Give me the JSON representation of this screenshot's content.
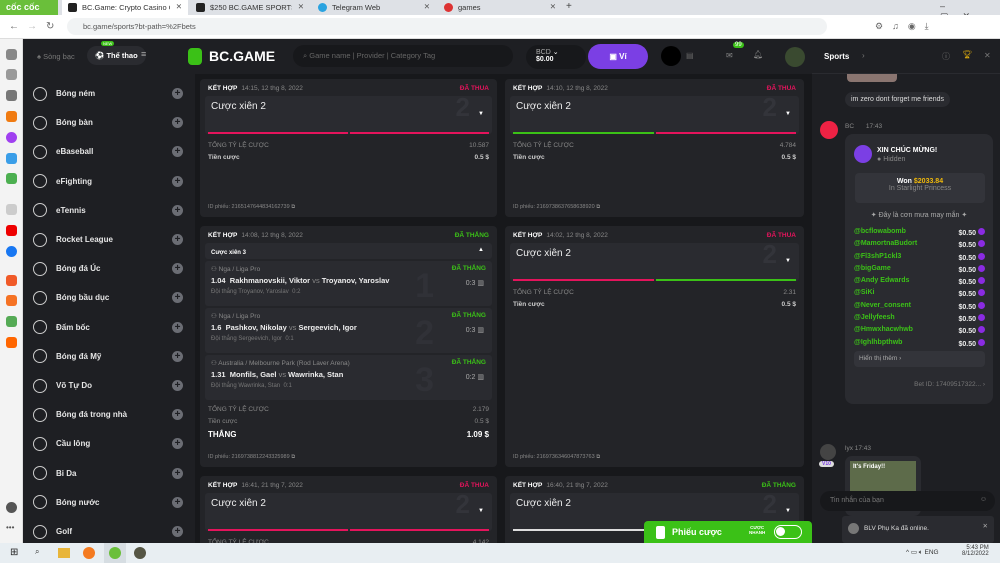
{
  "browser": {
    "brand": "cốc cốc",
    "tabs": [
      {
        "title": "BC.Game: Crypto Casino Gan",
        "active": true
      },
      {
        "title": "$250 BC.GAME SPORTS PARL",
        "active": false
      },
      {
        "title": "Telegram Web",
        "active": false
      },
      {
        "title": "games",
        "active": false
      }
    ],
    "url": "bc.game/sports?bt-path=%2Fbets"
  },
  "topnav": {
    "casino": "Sòng bạc",
    "sports": "Thể thao",
    "new_badge": "NEW",
    "logo": "BC.GAME",
    "search_placeholder": "Game name | Provider | Category Tag",
    "currency": "BCD",
    "balance": "$0.00",
    "wallet": "Ví",
    "mail_count": "99"
  },
  "sidebar": {
    "items": [
      "Bóng ném",
      "Bóng bàn",
      "eBaseball",
      "eFighting",
      "eTennis",
      "Rocket League",
      "Bóng đá Úc",
      "Bóng bầu dục",
      "Đấm bốc",
      "Bóng đá Mỹ",
      "Võ Tự Do",
      "Bóng đá trong nhà",
      "Cầu lông",
      "Bi Da",
      "Bóng nước",
      "Golf"
    ]
  },
  "labels": {
    "combo": "KẾT HỢP",
    "total_odds": "TỔNG TỶ LỆ CƯỢC",
    "stake": "Tiền cược",
    "ticket_id": "ID phiếu:",
    "win": "THẮNG",
    "lost": "ĐÃ THUA",
    "won": "ĐÃ THẮNG",
    "vs": "vs",
    "winner": "Đội thắng"
  },
  "bets": [
    {
      "time": "14:15, 12 thg 8, 2022",
      "status": "ĐÃ THUA",
      "title": "Cược xiên 2",
      "count": "2",
      "odds": "10.587",
      "stake": "0.5 $",
      "id": "2165147644834162739",
      "bars": [
        "#e4145c",
        "#e4145c"
      ]
    },
    {
      "time": "14:10, 12 thg 8, 2022",
      "status": "ĐÃ THUA",
      "title": "Cược xiên 2",
      "count": "2",
      "odds": "4.784",
      "stake": "0.5 $",
      "id": "2169738637658638920",
      "bars": [
        "#3bc117",
        "#e4145c"
      ]
    },
    {
      "time": "14:08, 12 thg 8, 2022",
      "status": "ĐÃ THẮNG",
      "title": "Cược xiên 3",
      "odds": "2.179",
      "stake": "0.5 $",
      "payout": "1.09 $",
      "id": "2169738812243325989",
      "legs": [
        {
          "league": "Nga / Liga Pro",
          "status": "ĐÃ THẮNG",
          "odds": "1.04",
          "home": "Rakhmanovskii, Viktor",
          "away": "Troyanov, Yaroslav",
          "score": "0:3",
          "pick": "Đội thắng Troyanov, Yaroslav",
          "pick_score": "0:2",
          "num": "1"
        },
        {
          "league": "Nga / Liga Pro",
          "status": "ĐÃ THẮNG",
          "odds": "1.6",
          "home": "Pashkov, Nikolay",
          "away": "Sergeevich, Igor",
          "score": "0:3",
          "pick": "Đội thắng Sergeevich, Igor",
          "pick_score": "0:1",
          "num": "2"
        },
        {
          "league": "Australia / Melbourne Park (Rod Laver Arena)",
          "status": "ĐÃ THẮNG",
          "odds": "1.31",
          "home": "Monfils, Gael",
          "away": "Wawrinka, Stan",
          "score": "0:2",
          "pick": "Đội thắng Wawrinka, Stan",
          "pick_score": "0:1",
          "num": "3"
        }
      ]
    },
    {
      "time": "14:02, 12 thg 8, 2022",
      "status": "ĐÃ THUA",
      "title": "Cược xiên 2",
      "count": "2",
      "odds": "2.31",
      "stake": "0.5 $",
      "id": "2169736346047873763",
      "bars": [
        "#e4145c",
        "#3bc117"
      ]
    },
    {
      "time": "16:41, 21 thg 7, 2022",
      "status": "ĐÃ THUA",
      "title": "Cược xiên 2",
      "count": "2",
      "odds": "4.142",
      "bars": [
        "#e4145c",
        "#e4145c"
      ]
    },
    {
      "time": "16:40, 21 thg 7, 2022",
      "status": "ĐÃ THẮNG",
      "title": "Cược xiên 2",
      "count": "2",
      "bars": [
        "#dddddd",
        "#dddddd"
      ]
    }
  ],
  "betslip": {
    "label": "Phiếu cược",
    "quick1": "CƯỢC",
    "quick2": "NHANH"
  },
  "chat": {
    "tab": "Sports",
    "msg1": "im zero dont forget me friends",
    "bc_user": "BC",
    "bc_time": "17:43",
    "congrats": "XIN CHÚC MỪNG!",
    "hidden": "Hidden",
    "won_label": "Won",
    "won_amount": "$2033.84",
    "game": "In Starlight Princess",
    "rain": "Đây là cơn mưa may mắn",
    "rain_users": [
      {
        "name": "@bcflowabomb",
        "amount": "$0.50"
      },
      {
        "name": "@MamortnaBudort",
        "amount": "$0.50"
      },
      {
        "name": "@Fl3shP1ckl3",
        "amount": "$0.50"
      },
      {
        "name": "@bigGame",
        "amount": "$0.50"
      },
      {
        "name": "@Andy Edwards",
        "amount": "$0.50"
      },
      {
        "name": "@SiKi",
        "amount": "$0.50"
      },
      {
        "name": "@Never_consent",
        "amount": "$0.50"
      },
      {
        "name": "@Jellyfeesh",
        "amount": "$0.50"
      },
      {
        "name": "@Hmwxhacwhwb",
        "amount": "$0.50"
      },
      {
        "name": "@Ighlhbpthwb",
        "amount": "$0.50"
      }
    ],
    "show_more": "Hiển thị thêm",
    "bet_id": "Bet ID: 17409517322...",
    "user2": "lyx",
    "time2": "17:43",
    "vip": "V10",
    "gif_text": "It's Friday!!",
    "input_placeholder": "Tin nhắn của bạn",
    "toast": "BLV Phụ Ka đã online."
  },
  "taskbar": {
    "time": "5:43 PM",
    "date": "8/12/2022",
    "lang": "ENG"
  },
  "colors": {
    "lost": "#e4145c",
    "won": "#3bc117",
    "wallet": "#7b3fe4",
    "chip": "#8a2be2"
  }
}
